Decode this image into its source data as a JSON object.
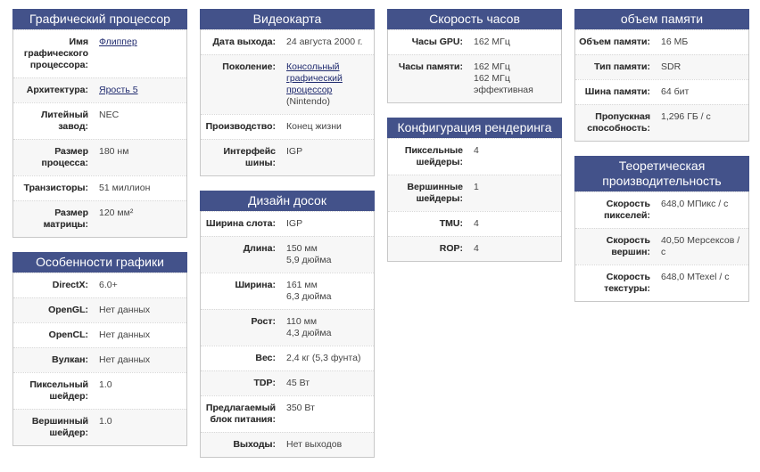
{
  "colors": {
    "header": "#43528a",
    "link": "#1f2a6e"
  },
  "columns": [
    [
      {
        "title": "Графический процессор",
        "rows": [
          {
            "label": "Имя графического процессора:",
            "value": [
              {
                "text": "Флиппер",
                "link": true
              }
            ]
          },
          {
            "label": "Архитектура:",
            "value": [
              {
                "text": "Ярость 5",
                "link": true
              }
            ]
          },
          {
            "label": "Литейный завод:",
            "value": [
              {
                "text": "NEC"
              }
            ]
          },
          {
            "label": "Размер процесса:",
            "value": [
              {
                "text": "180 нм"
              }
            ]
          },
          {
            "label": "Транзисторы:",
            "value": [
              {
                "text": "51 миллион"
              }
            ]
          },
          {
            "label": "Размер матрицы:",
            "value": [
              {
                "text": "120 мм²"
              }
            ]
          }
        ]
      },
      {
        "title": "Особенности графики",
        "rows": [
          {
            "label": "DirectX:",
            "value": [
              {
                "text": "6.0+"
              }
            ]
          },
          {
            "label": "OpenGL:",
            "value": [
              {
                "text": "Нет данных"
              }
            ]
          },
          {
            "label": "OpenCL:",
            "value": [
              {
                "text": "Нет данных"
              }
            ]
          },
          {
            "label": "Вулкан:",
            "value": [
              {
                "text": "Нет данных"
              }
            ]
          },
          {
            "label": "Пиксельный шейдер:",
            "value": [
              {
                "text": "1.0"
              }
            ]
          },
          {
            "label": "Вершинный шейдер:",
            "value": [
              {
                "text": "1.0"
              }
            ]
          }
        ]
      }
    ],
    [
      {
        "title": "Видеокарта",
        "rows": [
          {
            "label": "Дата выхода:",
            "value": [
              {
                "text": "24 августа 2000 г."
              }
            ]
          },
          {
            "label": "Поколение:",
            "value": [
              {
                "text": "Консольный графический процессор",
                "link": true
              },
              {
                "text": "(Nintendo)"
              }
            ]
          },
          {
            "label": "Производство:",
            "value": [
              {
                "text": "Конец жизни"
              }
            ]
          },
          {
            "label": "Интерфейс шины:",
            "value": [
              {
                "text": "IGP"
              }
            ]
          }
        ]
      },
      {
        "title": "Дизайн досок",
        "rows": [
          {
            "label": "Ширина слота:",
            "value": [
              {
                "text": "IGP"
              }
            ]
          },
          {
            "label": "Длина:",
            "value": [
              {
                "text": "150 мм"
              },
              {
                "text": "5,9 дюйма"
              }
            ]
          },
          {
            "label": "Ширина:",
            "value": [
              {
                "text": "161 мм"
              },
              {
                "text": "6,3 дюйма"
              }
            ]
          },
          {
            "label": "Рост:",
            "value": [
              {
                "text": "110 мм"
              },
              {
                "text": "4,3 дюйма"
              }
            ]
          },
          {
            "label": "Вес:",
            "value": [
              {
                "text": "2,4 кг (5,3 фунта)"
              }
            ]
          },
          {
            "label": "TDP:",
            "value": [
              {
                "text": "45 Вт"
              }
            ]
          },
          {
            "label": "Предлагаемый блок питания:",
            "value": [
              {
                "text": "350 Вт"
              }
            ]
          },
          {
            "label": "Выходы:",
            "value": [
              {
                "text": "Нет выходов"
              }
            ]
          }
        ]
      }
    ],
    [
      {
        "title": "Скорость часов",
        "rows": [
          {
            "label": "Часы GPU:",
            "value": [
              {
                "text": "162 МГц"
              }
            ]
          },
          {
            "label": "Часы памяти:",
            "value": [
              {
                "text": "162 МГц"
              },
              {
                "text": "162 МГц эффективная"
              }
            ]
          }
        ]
      },
      {
        "title": "Конфигурация рендеринга",
        "rows": [
          {
            "label": "Пиксельные шейдеры:",
            "value": [
              {
                "text": "4"
              }
            ]
          },
          {
            "label": "Вершинные шейдеры:",
            "value": [
              {
                "text": "1"
              }
            ]
          },
          {
            "label": "TMU:",
            "value": [
              {
                "text": "4"
              }
            ]
          },
          {
            "label": "ROP:",
            "value": [
              {
                "text": "4"
              }
            ]
          }
        ]
      }
    ],
    [
      {
        "title": "объем памяти",
        "rows": [
          {
            "label": "Объем памяти:",
            "value": [
              {
                "text": "16 МБ"
              }
            ]
          },
          {
            "label": "Тип памяти:",
            "value": [
              {
                "text": "SDR"
              }
            ]
          },
          {
            "label": "Шина памяти:",
            "value": [
              {
                "text": "64 бит"
              }
            ]
          },
          {
            "label": "Пропускная способность:",
            "value": [
              {
                "text": "1,296 ГБ / с"
              }
            ]
          }
        ]
      },
      {
        "title": "Теоретическая производительность",
        "rows": [
          {
            "label": "Скорость пикселей:",
            "value": [
              {
                "text": "648,0 МПикс / с"
              }
            ]
          },
          {
            "label": "Скорость вершин:",
            "value": [
              {
                "text": "40,50 Мерсексов / с"
              }
            ]
          },
          {
            "label": "Скорость текстуры:",
            "value": [
              {
                "text": "648,0 МTexel / с"
              }
            ]
          }
        ]
      }
    ]
  ]
}
